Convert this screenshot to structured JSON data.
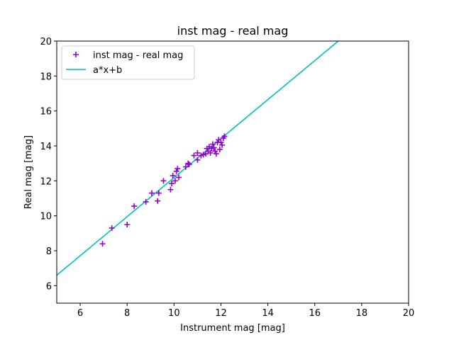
{
  "chart_data": {
    "type": "scatter",
    "title": "inst mag - real mag",
    "xlabel": "Instrument mag [mag]",
    "ylabel": "Real mag [mag]",
    "xlim": [
      5,
      20
    ],
    "ylim": [
      5,
      20
    ],
    "xticks": [
      "6",
      "8",
      "10",
      "12",
      "14",
      "16",
      "18",
      "20"
    ],
    "yticks": [
      "6",
      "8",
      "10",
      "12",
      "14",
      "16",
      "18",
      "20"
    ],
    "grid": false,
    "legend_position": "top-left",
    "series": [
      {
        "name": "inst mag - real mag",
        "kind": "scatter",
        "marker": "plus",
        "color": "#9400d3",
        "points": [
          [
            6.95,
            8.4
          ],
          [
            7.35,
            9.3
          ],
          [
            8.0,
            9.5
          ],
          [
            8.3,
            10.55
          ],
          [
            8.8,
            10.8
          ],
          [
            9.05,
            11.3
          ],
          [
            9.3,
            10.85
          ],
          [
            9.35,
            11.3
          ],
          [
            9.55,
            12.0
          ],
          [
            9.85,
            11.5
          ],
          [
            9.9,
            11.85
          ],
          [
            9.95,
            12.3
          ],
          [
            10.05,
            12.0
          ],
          [
            10.1,
            12.55
          ],
          [
            10.15,
            12.7
          ],
          [
            10.2,
            12.2
          ],
          [
            10.5,
            12.8
          ],
          [
            10.6,
            13.0
          ],
          [
            10.65,
            12.95
          ],
          [
            10.85,
            13.45
          ],
          [
            11.0,
            13.6
          ],
          [
            11.0,
            13.2
          ],
          [
            11.15,
            13.45
          ],
          [
            11.25,
            13.5
          ],
          [
            11.35,
            13.55
          ],
          [
            11.4,
            13.85
          ],
          [
            11.45,
            13.7
          ],
          [
            11.5,
            13.95
          ],
          [
            11.55,
            13.6
          ],
          [
            11.6,
            13.85
          ],
          [
            11.65,
            14.1
          ],
          [
            11.7,
            13.9
          ],
          [
            11.75,
            13.7
          ],
          [
            11.8,
            13.55
          ],
          [
            11.85,
            14.2
          ],
          [
            11.9,
            14.35
          ],
          [
            11.95,
            13.8
          ],
          [
            12.0,
            14.2
          ],
          [
            12.05,
            14.05
          ],
          [
            12.1,
            14.45
          ],
          [
            12.15,
            14.55
          ]
        ]
      },
      {
        "name": "a*x+b",
        "kind": "line",
        "color": "#00bfbf",
        "points": [
          [
            5.0,
            6.6
          ],
          [
            17.0,
            20.0
          ]
        ]
      }
    ]
  }
}
